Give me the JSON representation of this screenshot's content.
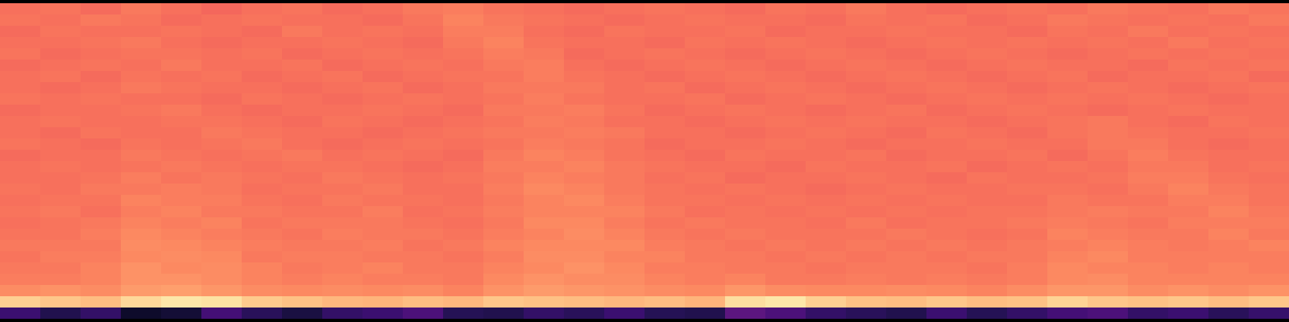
{
  "chart_data": {
    "type": "heatmap",
    "tick_labels": false,
    "grid": false,
    "color": "magma",
    "zlim": [
      0,
      1
    ],
    "z": [
      [
        0.7,
        0.71,
        0.69,
        0.72,
        0.7,
        0.68,
        0.7,
        0.71,
        0.69,
        0.7,
        0.72,
        0.73,
        0.71,
        0.7,
        0.69,
        0.7,
        0.71,
        0.7,
        0.69,
        0.71,
        0.7,
        0.72,
        0.7,
        0.69,
        0.7,
        0.71,
        0.7,
        0.72,
        0.71,
        0.7,
        0.72,
        0.71
      ],
      [
        0.71,
        0.7,
        0.72,
        0.71,
        0.69,
        0.7,
        0.71,
        0.7,
        0.7,
        0.69,
        0.71,
        0.74,
        0.72,
        0.71,
        0.7,
        0.69,
        0.7,
        0.71,
        0.7,
        0.7,
        0.69,
        0.71,
        0.7,
        0.71,
        0.69,
        0.7,
        0.72,
        0.71,
        0.7,
        0.71,
        0.7,
        0.72
      ],
      [
        0.69,
        0.71,
        0.7,
        0.7,
        0.71,
        0.7,
        0.69,
        0.72,
        0.7,
        0.71,
        0.7,
        0.73,
        0.73,
        0.7,
        0.69,
        0.71,
        0.7,
        0.7,
        0.71,
        0.69,
        0.7,
        0.7,
        0.71,
        0.7,
        0.7,
        0.69,
        0.71,
        0.7,
        0.72,
        0.7,
        0.71,
        0.7
      ],
      [
        0.7,
        0.7,
        0.71,
        0.72,
        0.7,
        0.69,
        0.7,
        0.7,
        0.71,
        0.7,
        0.69,
        0.72,
        0.74,
        0.71,
        0.7,
        0.7,
        0.69,
        0.71,
        0.7,
        0.71,
        0.7,
        0.69,
        0.7,
        0.71,
        0.7,
        0.71,
        0.7,
        0.71,
        0.7,
        0.72,
        0.7,
        0.71
      ],
      [
        0.71,
        0.69,
        0.7,
        0.71,
        0.71,
        0.7,
        0.71,
        0.69,
        0.7,
        0.71,
        0.7,
        0.71,
        0.73,
        0.72,
        0.69,
        0.7,
        0.71,
        0.7,
        0.69,
        0.7,
        0.71,
        0.7,
        0.69,
        0.7,
        0.71,
        0.7,
        0.69,
        0.7,
        0.71,
        0.7,
        0.71,
        0.7
      ],
      [
        0.69,
        0.7,
        0.71,
        0.7,
        0.72,
        0.7,
        0.7,
        0.71,
        0.69,
        0.7,
        0.71,
        0.7,
        0.72,
        0.73,
        0.7,
        0.69,
        0.7,
        0.71,
        0.7,
        0.69,
        0.7,
        0.71,
        0.7,
        0.69,
        0.7,
        0.71,
        0.7,
        0.7,
        0.69,
        0.71,
        0.7,
        0.71
      ],
      [
        0.7,
        0.71,
        0.69,
        0.71,
        0.7,
        0.71,
        0.69,
        0.7,
        0.71,
        0.69,
        0.7,
        0.71,
        0.71,
        0.73,
        0.71,
        0.7,
        0.69,
        0.7,
        0.71,
        0.7,
        0.69,
        0.7,
        0.71,
        0.7,
        0.69,
        0.7,
        0.71,
        0.69,
        0.7,
        0.7,
        0.71,
        0.69
      ],
      [
        0.7,
        0.69,
        0.7,
        0.72,
        0.71,
        0.7,
        0.7,
        0.69,
        0.7,
        0.71,
        0.69,
        0.7,
        0.72,
        0.72,
        0.72,
        0.7,
        0.71,
        0.69,
        0.7,
        0.71,
        0.7,
        0.69,
        0.7,
        0.71,
        0.7,
        0.69,
        0.7,
        0.71,
        0.7,
        0.69,
        0.7,
        0.71
      ],
      [
        0.71,
        0.7,
        0.71,
        0.7,
        0.7,
        0.69,
        0.71,
        0.7,
        0.69,
        0.7,
        0.71,
        0.7,
        0.71,
        0.73,
        0.71,
        0.7,
        0.7,
        0.71,
        0.69,
        0.7,
        0.71,
        0.7,
        0.69,
        0.7,
        0.71,
        0.7,
        0.71,
        0.7,
        0.71,
        0.7,
        0.69,
        0.7
      ],
      [
        0.69,
        0.7,
        0.7,
        0.71,
        0.72,
        0.7,
        0.69,
        0.7,
        0.7,
        0.71,
        0.7,
        0.69,
        0.72,
        0.72,
        0.73,
        0.71,
        0.69,
        0.7,
        0.71,
        0.7,
        0.69,
        0.7,
        0.71,
        0.69,
        0.7,
        0.71,
        0.7,
        0.69,
        0.7,
        0.71,
        0.7,
        0.7
      ],
      [
        0.7,
        0.71,
        0.7,
        0.7,
        0.71,
        0.71,
        0.7,
        0.69,
        0.71,
        0.7,
        0.69,
        0.7,
        0.71,
        0.73,
        0.72,
        0.7,
        0.7,
        0.69,
        0.7,
        0.71,
        0.7,
        0.71,
        0.7,
        0.7,
        0.69,
        0.7,
        0.71,
        0.72,
        0.7,
        0.69,
        0.71,
        0.7
      ],
      [
        0.7,
        0.69,
        0.71,
        0.7,
        0.7,
        0.72,
        0.71,
        0.7,
        0.7,
        0.69,
        0.7,
        0.71,
        0.72,
        0.72,
        0.73,
        0.72,
        0.7,
        0.7,
        0.69,
        0.7,
        0.71,
        0.7,
        0.69,
        0.71,
        0.7,
        0.69,
        0.71,
        0.72,
        0.71,
        0.7,
        0.7,
        0.71
      ],
      [
        0.71,
        0.7,
        0.69,
        0.71,
        0.7,
        0.71,
        0.72,
        0.7,
        0.69,
        0.7,
        0.71,
        0.7,
        0.71,
        0.73,
        0.72,
        0.71,
        0.69,
        0.7,
        0.7,
        0.71,
        0.7,
        0.69,
        0.7,
        0.7,
        0.71,
        0.7,
        0.7,
        0.72,
        0.72,
        0.7,
        0.69,
        0.7
      ],
      [
        0.69,
        0.7,
        0.7,
        0.72,
        0.71,
        0.7,
        0.71,
        0.72,
        0.7,
        0.71,
        0.7,
        0.69,
        0.72,
        0.74,
        0.73,
        0.71,
        0.7,
        0.69,
        0.71,
        0.7,
        0.7,
        0.71,
        0.69,
        0.7,
        0.7,
        0.71,
        0.69,
        0.71,
        0.73,
        0.71,
        0.7,
        0.7
      ],
      [
        0.7,
        0.71,
        0.7,
        0.71,
        0.72,
        0.71,
        0.7,
        0.71,
        0.71,
        0.7,
        0.69,
        0.7,
        0.73,
        0.73,
        0.74,
        0.72,
        0.71,
        0.7,
        0.7,
        0.69,
        0.71,
        0.7,
        0.7,
        0.71,
        0.69,
        0.7,
        0.71,
        0.7,
        0.72,
        0.72,
        0.7,
        0.71
      ],
      [
        0.7,
        0.7,
        0.71,
        0.73,
        0.71,
        0.72,
        0.71,
        0.7,
        0.72,
        0.71,
        0.7,
        0.71,
        0.72,
        0.74,
        0.73,
        0.72,
        0.7,
        0.71,
        0.69,
        0.7,
        0.7,
        0.71,
        0.7,
        0.69,
        0.71,
        0.7,
        0.7,
        0.71,
        0.73,
        0.73,
        0.71,
        0.7
      ],
      [
        0.71,
        0.7,
        0.72,
        0.72,
        0.73,
        0.72,
        0.7,
        0.71,
        0.71,
        0.72,
        0.7,
        0.7,
        0.73,
        0.75,
        0.74,
        0.72,
        0.71,
        0.7,
        0.71,
        0.7,
        0.69,
        0.7,
        0.71,
        0.7,
        0.7,
        0.71,
        0.71,
        0.7,
        0.72,
        0.74,
        0.72,
        0.71
      ],
      [
        0.7,
        0.71,
        0.71,
        0.74,
        0.73,
        0.73,
        0.71,
        0.7,
        0.72,
        0.71,
        0.71,
        0.7,
        0.72,
        0.74,
        0.75,
        0.73,
        0.71,
        0.71,
        0.7,
        0.71,
        0.7,
        0.71,
        0.7,
        0.71,
        0.7,
        0.7,
        0.72,
        0.71,
        0.71,
        0.73,
        0.73,
        0.71
      ],
      [
        0.71,
        0.72,
        0.7,
        0.73,
        0.74,
        0.72,
        0.72,
        0.71,
        0.71,
        0.73,
        0.7,
        0.71,
        0.73,
        0.74,
        0.74,
        0.74,
        0.72,
        0.7,
        0.71,
        0.7,
        0.71,
        0.7,
        0.71,
        0.7,
        0.71,
        0.71,
        0.72,
        0.73,
        0.72,
        0.72,
        0.74,
        0.72
      ],
      [
        0.7,
        0.71,
        0.72,
        0.74,
        0.73,
        0.74,
        0.71,
        0.72,
        0.72,
        0.72,
        0.71,
        0.7,
        0.72,
        0.75,
        0.75,
        0.73,
        0.71,
        0.72,
        0.71,
        0.71,
        0.7,
        0.72,
        0.7,
        0.71,
        0.71,
        0.72,
        0.73,
        0.72,
        0.71,
        0.73,
        0.73,
        0.73
      ],
      [
        0.71,
        0.71,
        0.73,
        0.75,
        0.74,
        0.73,
        0.72,
        0.71,
        0.73,
        0.72,
        0.72,
        0.71,
        0.73,
        0.74,
        0.76,
        0.74,
        0.72,
        0.71,
        0.72,
        0.71,
        0.71,
        0.71,
        0.72,
        0.71,
        0.7,
        0.71,
        0.74,
        0.73,
        0.72,
        0.72,
        0.74,
        0.72
      ],
      [
        0.72,
        0.72,
        0.72,
        0.76,
        0.75,
        0.74,
        0.73,
        0.72,
        0.72,
        0.73,
        0.71,
        0.72,
        0.74,
        0.75,
        0.75,
        0.75,
        0.73,
        0.72,
        0.71,
        0.72,
        0.71,
        0.72,
        0.71,
        0.72,
        0.71,
        0.72,
        0.73,
        0.74,
        0.73,
        0.72,
        0.73,
        0.74
      ],
      [
        0.71,
        0.73,
        0.73,
        0.75,
        0.76,
        0.75,
        0.72,
        0.73,
        0.73,
        0.72,
        0.72,
        0.71,
        0.73,
        0.76,
        0.76,
        0.74,
        0.74,
        0.72,
        0.72,
        0.71,
        0.72,
        0.71,
        0.72,
        0.71,
        0.72,
        0.72,
        0.74,
        0.75,
        0.73,
        0.73,
        0.73,
        0.73
      ],
      [
        0.72,
        0.72,
        0.74,
        0.77,
        0.75,
        0.76,
        0.74,
        0.72,
        0.73,
        0.74,
        0.72,
        0.72,
        0.74,
        0.75,
        0.77,
        0.75,
        0.73,
        0.73,
        0.72,
        0.72,
        0.71,
        0.72,
        0.72,
        0.72,
        0.71,
        0.73,
        0.75,
        0.74,
        0.74,
        0.73,
        0.74,
        0.73
      ],
      [
        0.73,
        0.73,
        0.74,
        0.77,
        0.77,
        0.76,
        0.74,
        0.73,
        0.74,
        0.73,
        0.73,
        0.72,
        0.75,
        0.77,
        0.76,
        0.76,
        0.74,
        0.73,
        0.74,
        0.72,
        0.72,
        0.73,
        0.72,
        0.73,
        0.72,
        0.73,
        0.75,
        0.76,
        0.74,
        0.74,
        0.74,
        0.74
      ],
      [
        0.76,
        0.77,
        0.76,
        0.79,
        0.8,
        0.78,
        0.76,
        0.75,
        0.76,
        0.75,
        0.76,
        0.74,
        0.77,
        0.79,
        0.78,
        0.77,
        0.76,
        0.75,
        0.78,
        0.76,
        0.75,
        0.75,
        0.76,
        0.75,
        0.74,
        0.76,
        0.78,
        0.78,
        0.76,
        0.77,
        0.76,
        0.77
      ],
      [
        0.9,
        0.88,
        0.86,
        0.92,
        0.95,
        0.94,
        0.89,
        0.87,
        0.85,
        0.84,
        0.86,
        0.85,
        0.88,
        0.87,
        0.86,
        0.85,
        0.86,
        0.84,
        0.93,
        0.95,
        0.9,
        0.87,
        0.86,
        0.88,
        0.86,
        0.87,
        0.91,
        0.88,
        0.87,
        0.88,
        0.86,
        0.88
      ],
      [
        0.2,
        0.14,
        0.18,
        0.08,
        0.1,
        0.22,
        0.16,
        0.12,
        0.18,
        0.2,
        0.24,
        0.15,
        0.14,
        0.18,
        0.16,
        0.2,
        0.15,
        0.14,
        0.28,
        0.24,
        0.18,
        0.16,
        0.14,
        0.2,
        0.15,
        0.18,
        0.22,
        0.24,
        0.18,
        0.2,
        0.16,
        0.19
      ]
    ]
  }
}
